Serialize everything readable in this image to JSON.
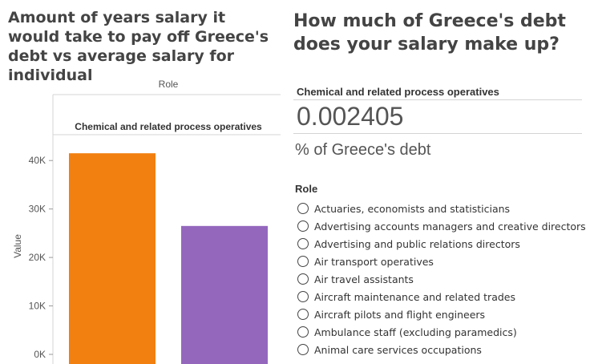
{
  "left_panel": {
    "title": "Amount of years salary it would take to pay off Greece's debt vs average salary for individual"
  },
  "right_panel": {
    "title": "How much of Greece's debt does your salary make up?",
    "kpi": {
      "header": "Chemical and related process operatives",
      "value": "0.002405",
      "caption": "% of Greece's debt"
    },
    "filter": {
      "title": "Role",
      "options": [
        "Actuaries, economists and statisticians",
        "Advertising accounts managers and creative directors",
        "Advertising and public relations directors",
        "Air transport operatives",
        "Air travel assistants",
        "Aircraft maintenance and related trades",
        "Aircraft pilots and flight engineers",
        "Ambulance staff (excluding paramedics)",
        "Animal care services occupations"
      ]
    }
  },
  "chart_data": {
    "type": "bar",
    "column_header": "Role",
    "panel_header": "Chemical and related process operatives",
    "ylabel": "Value",
    "ylim": [
      0,
      45000
    ],
    "yticks": [
      0,
      10000,
      20000,
      30000,
      40000
    ],
    "ytick_labels": [
      "0K",
      "10K",
      "20K",
      "30K",
      "40K"
    ],
    "categories": [
      "",
      ""
    ],
    "values": [
      41500,
      26500
    ],
    "colors": [
      "#f28010",
      "#9467bd"
    ],
    "grid": false
  }
}
